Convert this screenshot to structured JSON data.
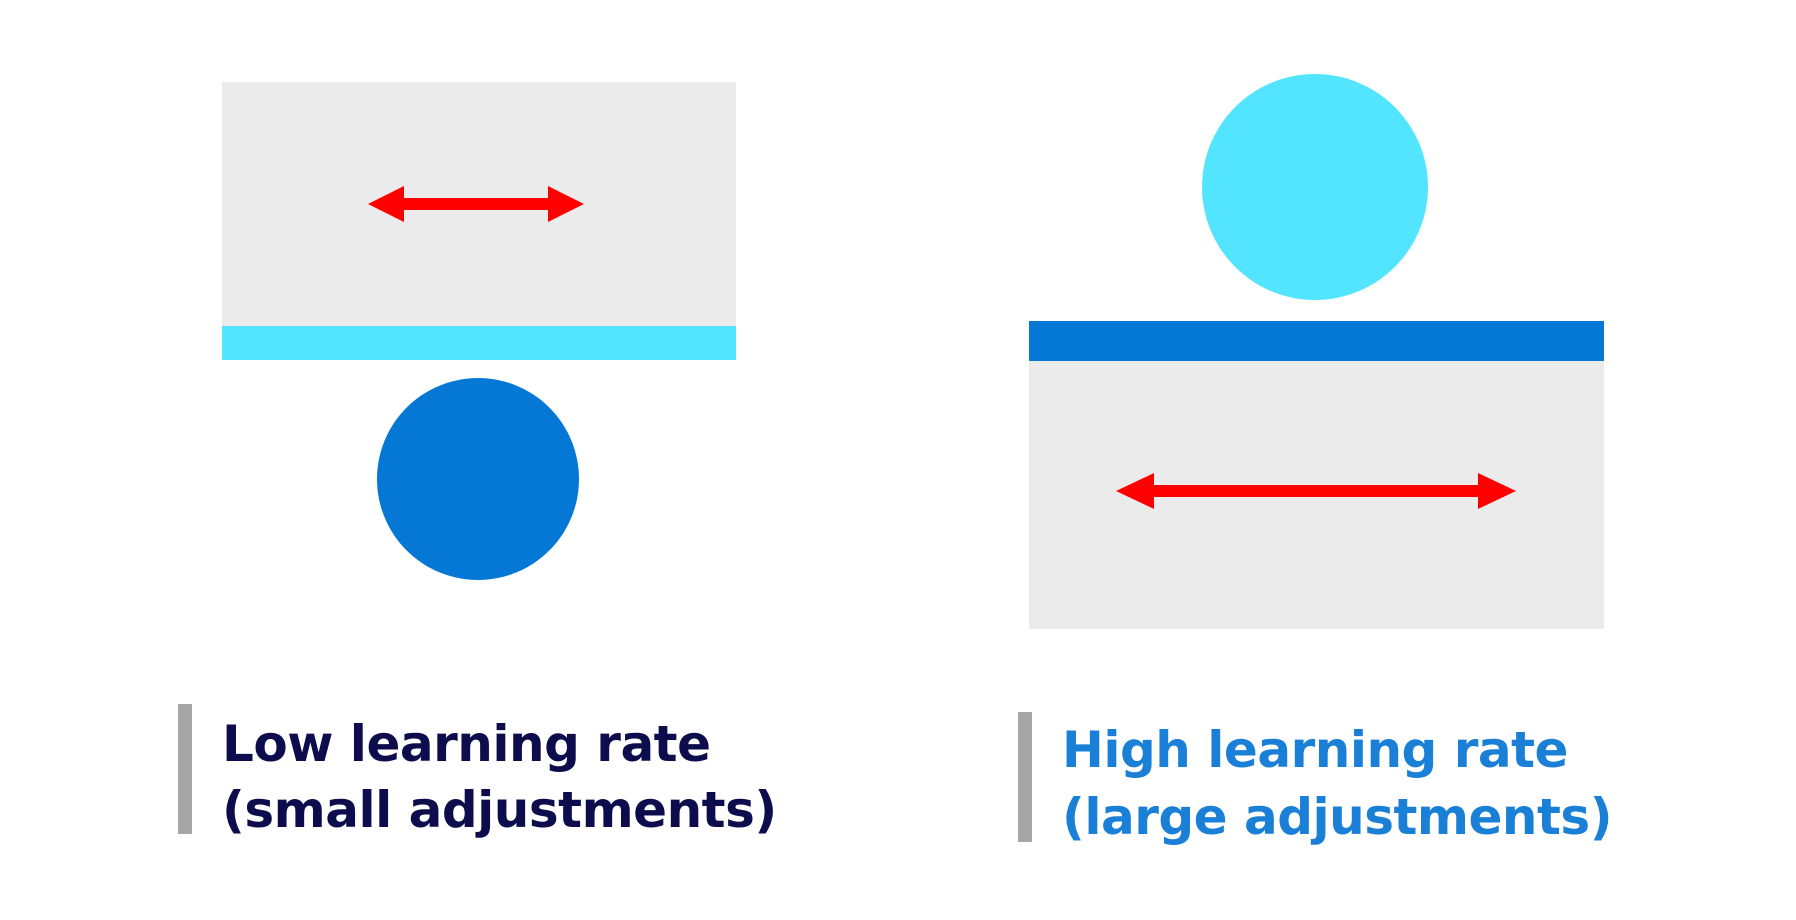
{
  "colors": {
    "panel": "#ebebeb",
    "light_blue": "#53e5ff",
    "dark_blue": "#0578d6",
    "arrow_red": "#ff0000",
    "caption_rule": "#a6a6a6"
  },
  "low_rate": {
    "caption_line1": "Low learning rate",
    "caption_line2": "(small adjustments)",
    "caption_color": "#0d0d4d"
  },
  "high_rate": {
    "caption_line1": "High learning rate",
    "caption_line2": "(large adjustments)",
    "caption_color": "#1a7fd6"
  }
}
